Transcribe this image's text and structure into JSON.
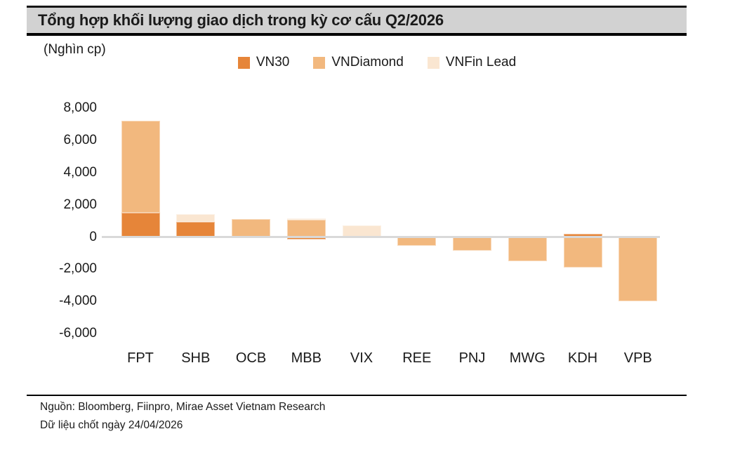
{
  "colors": {
    "title_bg": "#D2D2D2",
    "axis_line": "#D9D9D9",
    "text": "#1A1A1A"
  },
  "chart_data": {
    "type": "bar",
    "stacked": true,
    "title": "Tổng hợp khối lượng giao dịch trong kỳ cơ cấu Q2/2026",
    "unit": "(Nghìn cp)",
    "categories": [
      "FPT",
      "SHB",
      "OCB",
      "MBB",
      "VIX",
      "REE",
      "PNJ",
      "MWG",
      "KDH",
      "VPB"
    ],
    "series": [
      {
        "name": "VN30",
        "color": "#E68539",
        "values": [
          1500,
          950,
          0,
          -150,
          0,
          0,
          0,
          0,
          200,
          0
        ]
      },
      {
        "name": "VNDiamond",
        "color": "#F2B87E",
        "values": [
          5700,
          0,
          1100,
          1050,
          0,
          -550,
          -850,
          -1500,
          -1900,
          -4000
        ]
      },
      {
        "name": "VNFin Lead",
        "color": "#FAE6D1",
        "values": [
          0,
          450,
          0,
          100,
          720,
          0,
          0,
          0,
          0,
          0
        ]
      }
    ],
    "ylim": [
      -6000,
      8000
    ],
    "yticks": [
      8000,
      6000,
      4000,
      2000,
      0,
      -2000,
      -4000,
      -6000
    ],
    "ytick_labels": [
      "8,000",
      "6,000",
      "4,000",
      "2,000",
      "0",
      "-2,000",
      "-4,000",
      "-6,000"
    ],
    "legend_position": "top",
    "grid": false
  },
  "footer": {
    "source": "Nguồn: Bloomberg, Fiinpro, Mirae Asset Vietnam Research",
    "note": "Dữ liệu chốt ngày 24/04/2026"
  }
}
